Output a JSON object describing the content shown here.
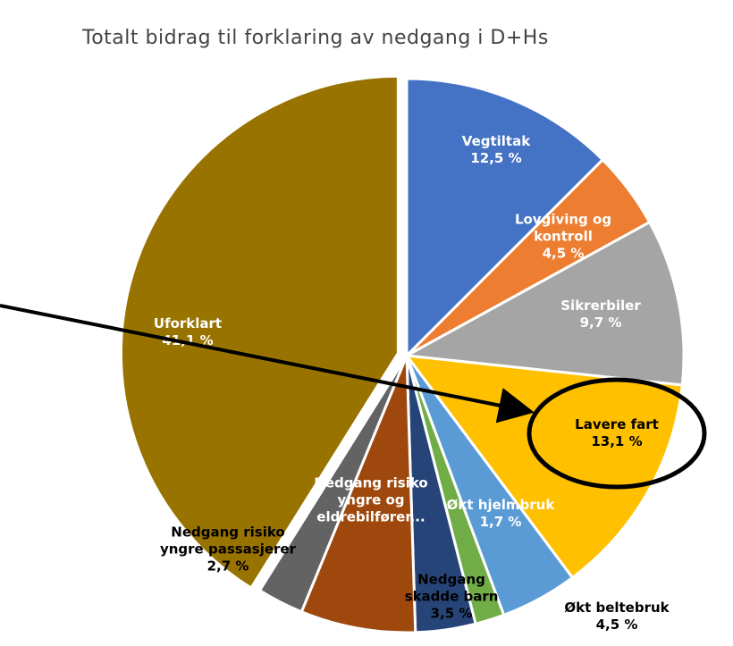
{
  "chart_data": {
    "type": "pie",
    "title": "Totalt bidrag til forklaring av nedgang i D+Hs",
    "categories": [
      "Vegtiltak",
      "Lovgiving og kontroll",
      "Sikrerbiler",
      "Lavere fart",
      "Økt beltebruk",
      "Økt hjelmbruk",
      "Nedgang skadde barn",
      "Nedgang risiko yngre og eldrebilfører...",
      "Nedgang risiko yngre passasjerer",
      "Uforklart"
    ],
    "values": [
      12.5,
      4.5,
      9.7,
      13.1,
      4.5,
      1.7,
      3.5,
      6.7,
      2.7,
      41.1
    ],
    "value_labels": [
      "12,5 %",
      "4,5 %",
      "9,7 %",
      "13,1 %",
      "4,5 %",
      "1,7 %",
      "3,5 %",
      null,
      "2,7 %",
      "41,1 %"
    ],
    "colors": [
      "#4472c4",
      "#ed7d31",
      "#a5a5a5",
      "#ffc000",
      "#5b9bd5",
      "#70ad47",
      "#264478",
      "#9e480e",
      "#636363",
      "#997300"
    ]
  }
}
